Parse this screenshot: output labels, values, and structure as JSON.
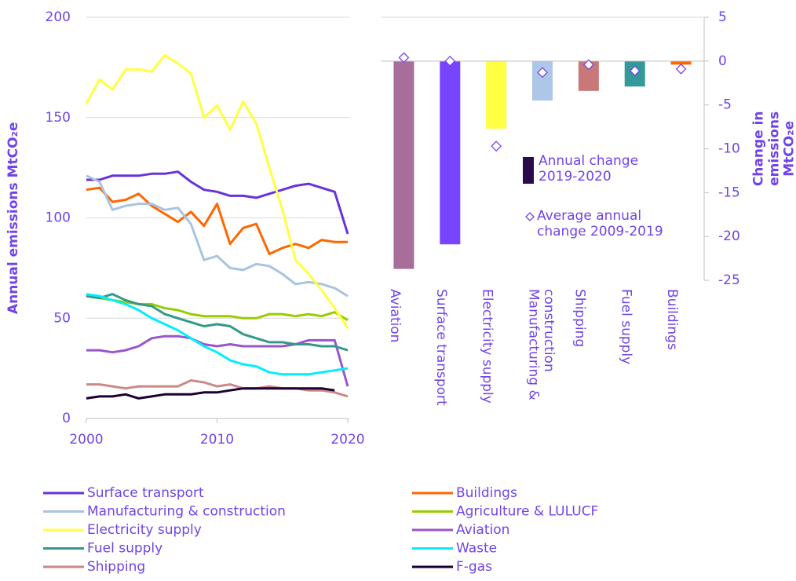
{
  "chart_data": [
    {
      "type": "line",
      "ylabel": "Annual emissions MtCO₂e",
      "x": [
        2000,
        2001,
        2002,
        2003,
        2004,
        2005,
        2006,
        2007,
        2008,
        2009,
        2010,
        2011,
        2012,
        2013,
        2014,
        2015,
        2016,
        2017,
        2018,
        2019,
        2020
      ],
      "xlim": [
        2000,
        2020
      ],
      "xticks": [
        2000,
        2010,
        2020
      ],
      "ylim": [
        0,
        200
      ],
      "yticks": [
        0,
        50,
        100,
        150,
        200
      ],
      "grid": true,
      "legend": "bottom",
      "series": [
        {
          "name": "Surface transport",
          "color": "#6633dd",
          "values": [
            119,
            119,
            121,
            121,
            121,
            122,
            122,
            123,
            118,
            114,
            113,
            111,
            111,
            110,
            112,
            114,
            116,
            117,
            115,
            113,
            92
          ]
        },
        {
          "name": "Buildings",
          "color": "#ff6600",
          "values": [
            114,
            115,
            108,
            109,
            112,
            106,
            102,
            98,
            103,
            96,
            107,
            87,
            95,
            97,
            82,
            85,
            87,
            85,
            89,
            88,
            88
          ]
        },
        {
          "name": "Manufacturing & construction",
          "color": "#a8c4e0",
          "values": [
            121,
            118,
            104,
            106,
            107,
            107,
            104,
            105,
            97,
            79,
            81,
            75,
            74,
            77,
            76,
            72,
            67,
            68,
            67,
            65,
            61
          ]
        },
        {
          "name": "Agriculture & LULUCF",
          "color": "#99cc00",
          "values": [
            61,
            60,
            59,
            58,
            57,
            57,
            55,
            54,
            52,
            51,
            51,
            51,
            50,
            50,
            52,
            52,
            51,
            52,
            51,
            53,
            49
          ]
        },
        {
          "name": "Electricity supply",
          "color": "#ffff44",
          "values": [
            157,
            169,
            164,
            174,
            174,
            173,
            181,
            177,
            172,
            150,
            156,
            144,
            158,
            147,
            125,
            104,
            79,
            72,
            64,
            55,
            45
          ]
        },
        {
          "name": "Aviation",
          "color": "#9955cc",
          "values": [
            34,
            34,
            33,
            34,
            36,
            40,
            41,
            41,
            40,
            37,
            36,
            37,
            36,
            36,
            36,
            36,
            37,
            39,
            39,
            39,
            16
          ]
        },
        {
          "name": "Fuel supply",
          "color": "#339988",
          "values": [
            61,
            60,
            62,
            59,
            57,
            56,
            52,
            50,
            48,
            46,
            47,
            46,
            42,
            40,
            38,
            38,
            37,
            37,
            36,
            36,
            34
          ]
        },
        {
          "name": "Waste",
          "color": "#00eeff",
          "values": [
            62,
            61,
            59,
            57,
            54,
            50,
            47,
            44,
            40,
            36,
            33,
            29,
            27,
            26,
            23,
            22,
            22,
            22,
            23,
            24,
            25
          ]
        },
        {
          "name": "Shipping",
          "color": "#cc8888",
          "values": [
            17,
            17,
            16,
            15,
            16,
            16,
            16,
            16,
            19,
            18,
            16,
            17,
            15,
            15,
            16,
            15,
            15,
            14,
            14,
            13,
            11
          ]
        },
        {
          "name": "F-gas",
          "color": "#1a0033",
          "values": [
            10,
            11,
            11,
            12,
            10,
            11,
            12,
            12,
            12,
            13,
            13,
            14,
            15,
            15,
            15,
            15,
            15,
            15,
            15,
            14,
            null
          ]
        }
      ]
    },
    {
      "type": "bar",
      "ylabel": "Change in emissions MtCO₂e",
      "categories": [
        "Aviation",
        "Surface transport",
        "Electricity supply",
        "Manufacturing & construction",
        "Shipping",
        "Fuel supply",
        "Buildings"
      ],
      "ylim": [
        -25,
        5
      ],
      "yticks": [
        -25,
        -20,
        -15,
        -10,
        -5,
        0,
        5
      ],
      "series": [
        {
          "name": "Annual change 2019-2020",
          "color": "#2a0a4a",
          "colors": [
            "#a86e9a",
            "#7744ff",
            "#ffff44",
            "#aec6e8",
            "#c87878",
            "#339999",
            "#ff6600"
          ],
          "values": [
            -23.7,
            -20.9,
            -7.7,
            -4.5,
            -3.4,
            -2.9,
            -0.4
          ]
        },
        {
          "name": "Average annual change 2009-2019",
          "color": "#7744ee",
          "marker": "diamond",
          "values": [
            0.4,
            0,
            -9.7,
            -1.3,
            -0.4,
            -1.1,
            -0.9
          ]
        }
      ]
    }
  ]
}
